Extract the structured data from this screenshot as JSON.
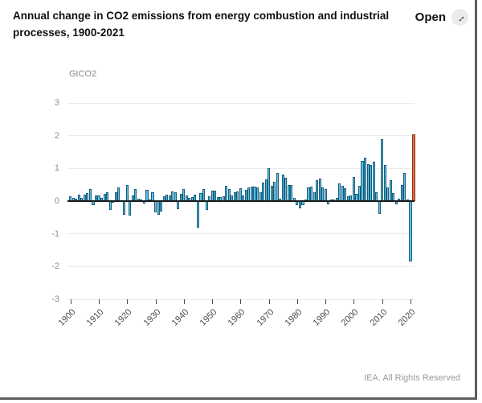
{
  "header": {
    "title": "Annual change in CO2 emissions from energy combustion and industrial processes, 1900-2021",
    "title_line1": "Annual change in CO2 emissions from energy combustion and industrial",
    "title_line2": "processes, 1900-2021",
    "open_button": {
      "label": "Open",
      "icon": "expand-diagonal-arrow",
      "icon_glyph": "↔"
    }
  },
  "chart_data": {
    "type": "bar",
    "title": "Annual change in CO2 emissions from energy combustion and industrial processes, 1900-2021",
    "unit_label": "GtCO2",
    "ylabel": "GtCO2",
    "xlabel": "",
    "ylim": [
      -3,
      3
    ],
    "yticks": [
      3,
      2,
      1,
      0,
      -1,
      -2,
      -3
    ],
    "xticks": [
      1900,
      1910,
      1920,
      1930,
      1940,
      1950,
      1960,
      1970,
      1980,
      1990,
      2000,
      2010,
      2020
    ],
    "grid": true,
    "legend": false,
    "start_year": 1900,
    "end_year": 2021,
    "bar_color": "#5BC2E7",
    "bar_border_color": "#1C5D7A",
    "highlight_year": 2021,
    "highlight_color": "#E2693F",
    "highlight_border_color": "#8F3A1C",
    "values": [
      0.15,
      0.1,
      0.07,
      0.2,
      0.1,
      0.2,
      0.25,
      0.38,
      -0.12,
      0.16,
      0.18,
      0.1,
      0.22,
      0.26,
      -0.27,
      -0.05,
      0.28,
      0.42,
      0.03,
      -0.43,
      0.5,
      -0.45,
      0.17,
      0.36,
      0.08,
      0.05,
      -0.07,
      0.34,
      0.05,
      0.28,
      -0.35,
      -0.41,
      -0.31,
      0.15,
      0.2,
      0.17,
      0.3,
      0.26,
      -0.25,
      0.22,
      0.36,
      0.16,
      0.11,
      0.12,
      0.2,
      -0.8,
      0.24,
      0.36,
      -0.27,
      0.15,
      0.33,
      0.33,
      0.12,
      0.13,
      0.15,
      0.46,
      0.36,
      0.18,
      0.26,
      0.3,
      0.4,
      0.18,
      0.35,
      0.42,
      0.45,
      0.45,
      0.42,
      0.28,
      0.57,
      0.67,
      1.02,
      0.46,
      0.59,
      0.87,
      0.08,
      0.8,
      0.72,
      0.5,
      0.48,
      0.1,
      -0.13,
      -0.22,
      -0.13,
      0.05,
      0.42,
      0.45,
      0.28,
      0.65,
      0.68,
      0.41,
      0.38,
      -0.09,
      0.05,
      0.06,
      0.1,
      0.55,
      0.46,
      0.4,
      0.14,
      0.16,
      0.75,
      0.22,
      0.46,
      1.22,
      1.32,
      1.14,
      1.11,
      1.2,
      0.26,
      -0.4,
      1.89,
      1.1,
      0.42,
      0.65,
      0.25,
      -0.09,
      0.08,
      0.5,
      0.85,
      0.05,
      -1.85,
      2.05
    ]
  },
  "footer": {
    "credit": "IEA. All Rights Reserved"
  }
}
